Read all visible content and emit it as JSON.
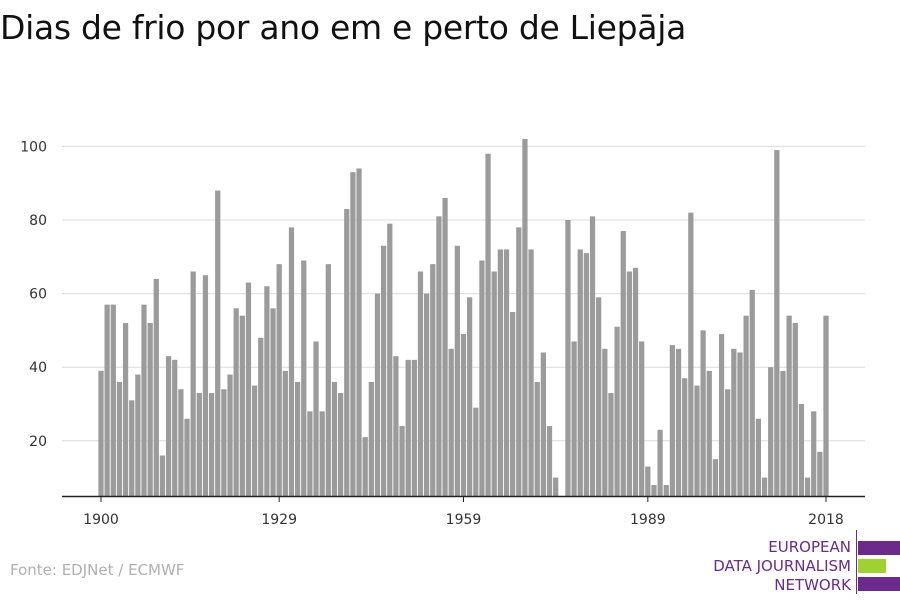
{
  "title": "Dias de frio por ano em e perto de Liepāja",
  "source": "Fonte: EDJNet / ECMWF",
  "logo": {
    "line1": "EUROPEAN",
    "line2": "DATA JOURNALISM",
    "line3": "NETWORK",
    "colors": {
      "purple": "#6c2a8a",
      "green": "#9fd133"
    }
  },
  "chart_data": {
    "type": "bar",
    "title": "Dias de frio por ano em e perto de Liepāja",
    "xlabel": "",
    "ylabel": "",
    "x_start": 1900,
    "x_end": 2018,
    "ylim": [
      5,
      105
    ],
    "yticks": [
      20,
      40,
      60,
      80,
      100
    ],
    "xticks": [
      1900,
      1929,
      1959,
      1989,
      2018
    ],
    "grid": true,
    "bar_color": "#9b9b9b",
    "x": [
      1900,
      1901,
      1902,
      1903,
      1904,
      1905,
      1906,
      1907,
      1908,
      1909,
      1910,
      1911,
      1912,
      1913,
      1914,
      1915,
      1916,
      1917,
      1918,
      1919,
      1920,
      1921,
      1922,
      1923,
      1924,
      1925,
      1926,
      1927,
      1928,
      1929,
      1930,
      1931,
      1932,
      1933,
      1934,
      1935,
      1936,
      1937,
      1938,
      1939,
      1940,
      1941,
      1942,
      1943,
      1944,
      1945,
      1946,
      1947,
      1948,
      1949,
      1950,
      1951,
      1952,
      1953,
      1954,
      1955,
      1956,
      1957,
      1958,
      1959,
      1960,
      1961,
      1962,
      1963,
      1964,
      1965,
      1966,
      1967,
      1968,
      1969,
      1970,
      1971,
      1972,
      1973,
      1974,
      1975,
      1976,
      1977,
      1978,
      1979,
      1980,
      1981,
      1982,
      1983,
      1984,
      1985,
      1986,
      1987,
      1988,
      1989,
      1990,
      1991,
      1992,
      1993,
      1994,
      1995,
      1996,
      1997,
      1998,
      1999,
      2000,
      2001,
      2002,
      2003,
      2004,
      2005,
      2006,
      2007,
      2008,
      2009,
      2010,
      2011,
      2012,
      2013,
      2014,
      2015,
      2016,
      2017,
      2018
    ],
    "values": [
      39,
      57,
      57,
      36,
      52,
      31,
      38,
      57,
      52,
      64,
      16,
      43,
      42,
      34,
      26,
      66,
      33,
      65,
      33,
      88,
      34,
      38,
      56,
      54,
      63,
      35,
      48,
      62,
      56,
      68,
      39,
      78,
      36,
      69,
      28,
      47,
      28,
      68,
      36,
      33,
      83,
      93,
      94,
      21,
      36,
      60,
      73,
      79,
      43,
      24,
      42,
      42,
      66,
      60,
      68,
      81,
      86,
      45,
      73,
      49,
      59,
      29,
      69,
      98,
      66,
      72,
      72,
      55,
      78,
      102,
      72,
      36,
      44,
      24,
      10,
      5,
      80,
      47,
      72,
      71,
      81,
      59,
      45,
      33,
      51,
      77,
      66,
      67,
      47,
      13,
      8,
      23,
      8,
      46,
      45,
      37,
      82,
      35,
      50,
      39,
      15,
      49,
      34,
      45,
      44,
      54,
      61,
      26,
      10,
      40,
      99,
      39,
      54,
      52,
      30,
      10,
      28,
      17,
      54
    ]
  }
}
